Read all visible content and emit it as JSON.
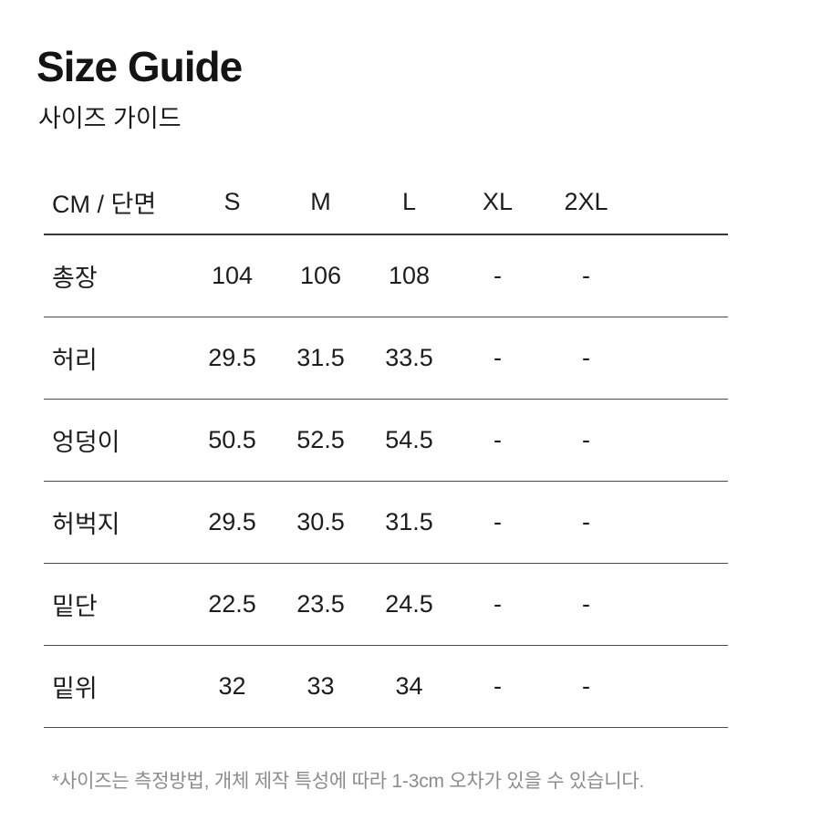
{
  "page": {
    "title": "Size Guide",
    "subtitle": "사이즈 가이드",
    "footnote": "*사이즈는 측정방법, 개체 제작 특성에 따라 1-3cm 오차가 있을 수 있습니다."
  },
  "chart_data": {
    "type": "table",
    "title": "Size Guide",
    "unit_label": "CM / 단면",
    "columns": [
      "CM / 단면",
      "S",
      "M",
      "L",
      "XL",
      "2XL"
    ],
    "rows": [
      {
        "label": "총장",
        "values": [
          "104",
          "106",
          "108",
          "-",
          "-"
        ]
      },
      {
        "label": "허리",
        "values": [
          "29.5",
          "31.5",
          "33.5",
          "-",
          "-"
        ]
      },
      {
        "label": "엉덩이",
        "values": [
          "50.5",
          "52.5",
          "54.5",
          "-",
          "-"
        ]
      },
      {
        "label": "허벅지",
        "values": [
          "29.5",
          "30.5",
          "31.5",
          "-",
          "-"
        ]
      },
      {
        "label": "밑단",
        "values": [
          "22.5",
          "23.5",
          "24.5",
          "-",
          "-"
        ]
      },
      {
        "label": "밑위",
        "values": [
          "32",
          "33",
          "34",
          "-",
          "-"
        ]
      }
    ]
  },
  "colors": {
    "text": "#1d1d1d",
    "footnote_text": "#8c8c8c",
    "header_line": "#363636",
    "row_line": "#4a4a4a",
    "background": "#ffffff"
  }
}
